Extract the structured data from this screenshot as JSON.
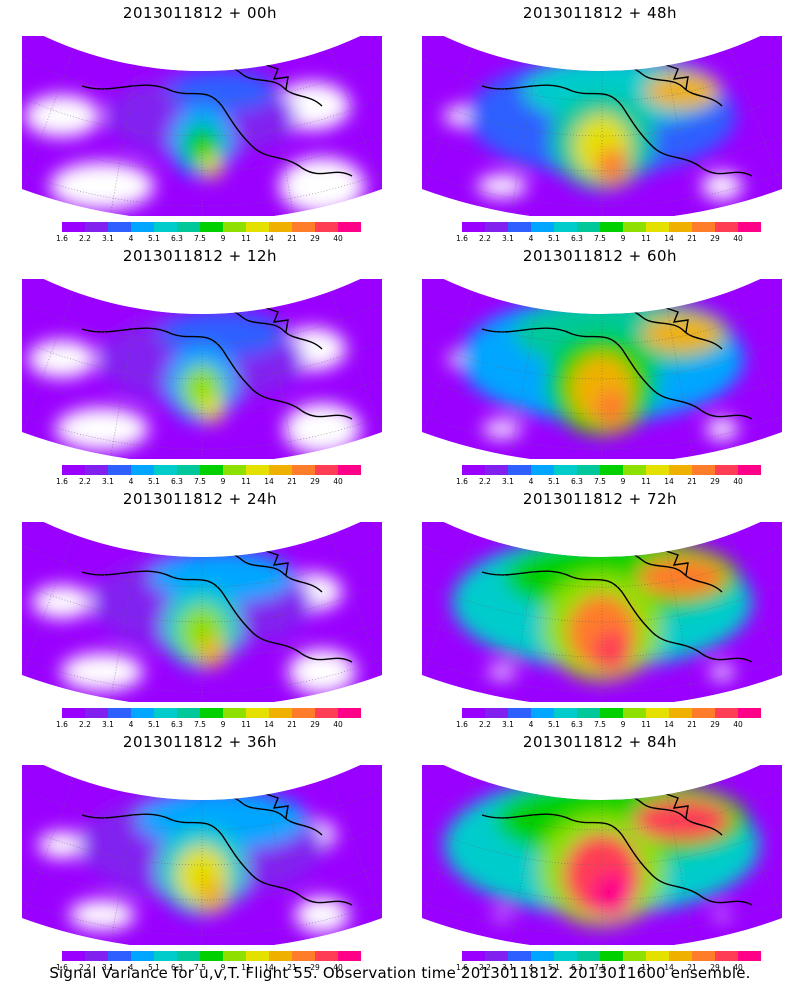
{
  "panels": [
    {
      "title": "2013011812 + 00h",
      "intensity": 0.05,
      "hot": 0.15
    },
    {
      "title": "2013011812 + 48h",
      "intensity": 0.55,
      "hot": 0.55
    },
    {
      "title": "2013011812 + 12h",
      "intensity": 0.15,
      "hot": 0.25
    },
    {
      "title": "2013011812 + 60h",
      "intensity": 0.65,
      "hot": 0.65
    },
    {
      "title": "2013011812 + 24h",
      "intensity": 0.25,
      "hot": 0.35
    },
    {
      "title": "2013011812 + 72h",
      "intensity": 0.75,
      "hot": 0.8
    },
    {
      "title": "2013011812 + 36h",
      "intensity": 0.4,
      "hot": 0.45
    },
    {
      "title": "2013011812 + 84h",
      "intensity": 0.85,
      "hot": 0.95
    }
  ],
  "colorbar": {
    "labels": [
      "1.6",
      "2.2",
      "3.1",
      "4",
      "5.1",
      "6.3",
      "7.5",
      "9",
      "11",
      "14",
      "21",
      "29",
      "40"
    ],
    "colors": [
      "#9a00ff",
      "#8220f0",
      "#2f5fff",
      "#00a6ff",
      "#00cccc",
      "#00c89a",
      "#00d000",
      "#8ee000",
      "#e4e000",
      "#f0b000",
      "#ff7c2a",
      "#ff3d55",
      "#ff0088"
    ]
  },
  "footer": "Signal Variance for u,v,T. Flight 55. Observation time 2013011812. 2013011600 ensemble."
}
